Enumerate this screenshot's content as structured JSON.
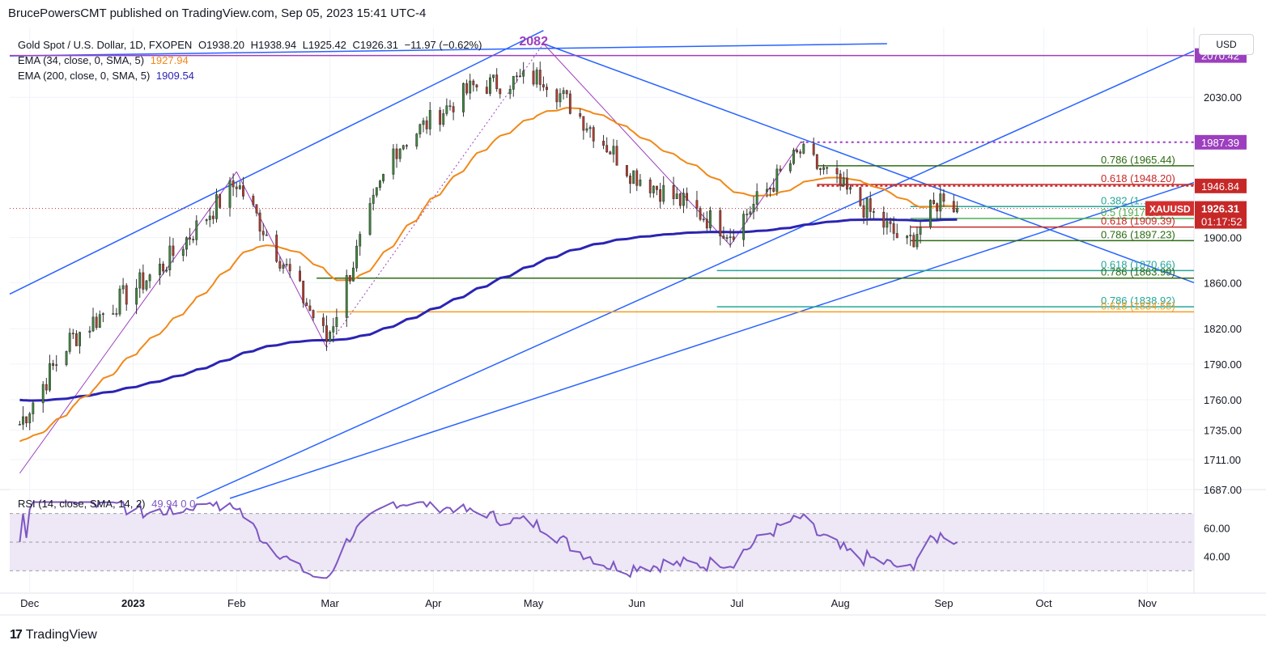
{
  "header": {
    "publisher_line": "BrucePowersCMT published on TradingView.com, Sep 05, 2023 15:41 UTC-4"
  },
  "footer": {
    "brand": "TradingView",
    "logo_glyph": "17"
  },
  "legend": {
    "symbol_line": "Gold Spot / U.S. Dollar, 1D, FXOPEN",
    "ohlc": {
      "o": "O1938.20",
      "h": "H1938.94",
      "l": "L1925.42",
      "c": "C1926.31",
      "chg": "−11.97 (−0.62%)"
    },
    "ema34_label": "EMA (34, close, 0, SMA, 5)",
    "ema34_value": "1927.94",
    "ema200_label": "EMA (200, close, 0, SMA, 5)",
    "ema200_value": "1909.54",
    "rsi_label": "RSI (14, close, SMA, 14, 2)",
    "rsi_values": "49.94  0  0"
  },
  "colors": {
    "up": "#26a69a",
    "candle_up": "#3c8d3c",
    "candle_down": "#c0392b",
    "ema34": "#f0891a",
    "ema200": "#2b24b3",
    "trend": "#2962ff",
    "purple": "#9c3fbf",
    "rsi": "#7e57c2",
    "rsi_band": "#ede7f6",
    "price_tag_bg": "#d32f2f",
    "fib_green": "#2e6b12",
    "fib_red": "#c62828",
    "fib_teal": "#26a69a",
    "fib_orange": "#f59d1b"
  },
  "price_scale": {
    "currency": "USD",
    "ticks": [
      "2030.00",
      "1900.00",
      "1860.00",
      "1820.00",
      "1790.00",
      "1760.00",
      "1735.00",
      "1711.00",
      "1687.00"
    ],
    "tags": [
      {
        "text": "2070.42",
        "color": "#9c3fbf"
      },
      {
        "text": "1987.39",
        "color": "#9c3fbf"
      },
      {
        "text": "1946.84",
        "color": "#c62828"
      },
      {
        "text": "1926.31",
        "color": "#c62828"
      },
      {
        "text": "01:17:52",
        "color": "#c62828"
      }
    ],
    "symbol_tag": "XAUUSD"
  },
  "rsi_scale": {
    "ticks": [
      "60.00",
      "40.00"
    ]
  },
  "time_axis": {
    "labels": [
      "Dec",
      "2023",
      "Feb",
      "Mar",
      "Apr",
      "May",
      "Jun",
      "Jul",
      "Aug",
      "Sep",
      "Oct",
      "Nov"
    ]
  },
  "annotations": {
    "peak_label": "2082",
    "fib_labels": [
      {
        "text": "0.786 (1965.44)",
        "color": "#2e6b12"
      },
      {
        "text": "0.618 (1948.20)",
        "color": "#c62828"
      },
      {
        "text": "0.382 (1…",
        "color": "#26a69a"
      },
      {
        "text": "0.5 (1917.23)",
        "color": "#4caf50"
      },
      {
        "text": "0.618 (1909.39)",
        "color": "#c62828"
      },
      {
        "text": "0.786 (1897.23)",
        "color": "#2e6b12"
      },
      {
        "text": "0.618 (1870.66)",
        "color": "#26a69a"
      },
      {
        "text": "0.786 (1863.99)",
        "color": "#2e6b12"
      },
      {
        "text": "0.786 (1838.92)",
        "color": "#26a69a"
      },
      {
        "text": "0.618 (1834.55)",
        "color": "#f59d1b"
      }
    ]
  },
  "chart_data": {
    "type": "candlestick",
    "symbol": "XAUUSD",
    "interval": "1D",
    "scale": "log",
    "x_range": [
      "2022-11-25",
      "2023-11-15"
    ],
    "ylim": [
      1687,
      2082
    ],
    "current_price": 1926.31,
    "ema34_current": 1927.94,
    "ema200_current": 1909.54,
    "peak": {
      "date": "2023-05-04",
      "value": 2082
    },
    "swing_points": [
      {
        "date": "2022-11-28",
        "close": 1740
      },
      {
        "date": "2022-12-13",
        "close": 1810
      },
      {
        "date": "2023-01-10",
        "close": 1875
      },
      {
        "date": "2023-02-01",
        "close": 1950
      },
      {
        "date": "2023-02-28",
        "close": 1810
      },
      {
        "date": "2023-03-20",
        "close": 1980
      },
      {
        "date": "2023-04-13",
        "close": 2040
      },
      {
        "date": "2023-05-04",
        "close": 2050
      },
      {
        "date": "2023-05-30",
        "close": 1960
      },
      {
        "date": "2023-06-29",
        "close": 1905
      },
      {
        "date": "2023-07-20",
        "close": 1978
      },
      {
        "date": "2023-08-21",
        "close": 1893
      },
      {
        "date": "2023-09-01",
        "close": 1940
      },
      {
        "date": "2023-09-05",
        "close": 1926.31
      }
    ],
    "fib_levels": [
      {
        "ratio": 0.786,
        "value": 1965.44
      },
      {
        "ratio": 0.618,
        "value": 1948.2
      },
      {
        "ratio": 0.5,
        "value": 1917.23
      },
      {
        "ratio": 0.618,
        "value": 1909.39
      },
      {
        "ratio": 0.786,
        "value": 1897.23
      },
      {
        "ratio": 0.618,
        "value": 1870.66
      },
      {
        "ratio": 0.786,
        "value": 1863.99
      },
      {
        "ratio": 0.786,
        "value": 1838.92
      },
      {
        "ratio": 0.618,
        "value": 1834.55
      }
    ],
    "horizontal_levels": [
      2070.42,
      1987.39,
      1946.84
    ],
    "rsi": {
      "period": 14,
      "current": 49.94,
      "levels": [
        70,
        50,
        30
      ],
      "ylim": [
        20,
        80
      ]
    }
  }
}
